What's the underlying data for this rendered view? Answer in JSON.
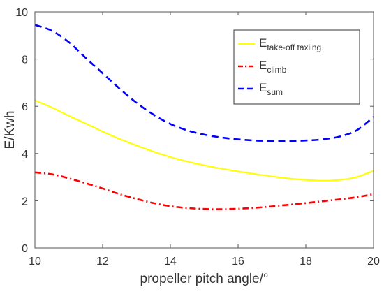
{
  "chart_data": {
    "type": "line",
    "xlabel": "propeller pitch angle/°",
    "ylabel": "E/Kwh",
    "xlim": [
      10,
      20
    ],
    "ylim": [
      0,
      10
    ],
    "xticks": [
      10,
      12,
      14,
      16,
      18,
      20
    ],
    "yticks": [
      0,
      2,
      4,
      6,
      8,
      10
    ],
    "grid": false,
    "legend_position": "top-right",
    "series": [
      {
        "name_main": "E",
        "name_sub": "take-off taxiing",
        "color": "#ffff00",
        "style": "solid",
        "x": [
          10,
          10.5,
          11,
          11.5,
          12,
          12.5,
          13,
          13.5,
          14,
          14.5,
          15,
          15.5,
          16,
          16.5,
          17,
          17.5,
          18,
          18.5,
          19,
          19.5,
          20
        ],
        "y": [
          6.25,
          5.95,
          5.6,
          5.27,
          4.93,
          4.62,
          4.34,
          4.08,
          3.85,
          3.66,
          3.5,
          3.36,
          3.24,
          3.13,
          3.03,
          2.94,
          2.88,
          2.85,
          2.88,
          3.0,
          3.27
        ]
      },
      {
        "name_main": "E",
        "name_sub": "climb",
        "color": "#ff0000",
        "style": "dash-dot",
        "x": [
          10,
          10.5,
          11,
          11.5,
          12,
          12.5,
          13,
          13.5,
          14,
          14.5,
          15,
          15.5,
          16,
          16.5,
          17,
          17.5,
          18,
          18.5,
          19,
          19.5,
          20
        ],
        "y": [
          3.2,
          3.12,
          2.95,
          2.74,
          2.52,
          2.28,
          2.08,
          1.9,
          1.77,
          1.69,
          1.65,
          1.64,
          1.66,
          1.7,
          1.76,
          1.83,
          1.9,
          1.98,
          2.06,
          2.15,
          2.28
        ]
      },
      {
        "name_main": "E",
        "name_sub": "sum",
        "color": "#0000ff",
        "style": "dashed",
        "x": [
          10,
          10.5,
          11,
          11.5,
          12,
          12.5,
          13,
          13.5,
          14,
          14.5,
          15,
          15.5,
          16,
          16.5,
          17,
          17.5,
          18,
          18.5,
          19,
          19.5,
          20
        ],
        "y": [
          9.45,
          9.2,
          8.72,
          8.05,
          7.4,
          6.75,
          6.15,
          5.65,
          5.25,
          4.98,
          4.8,
          4.68,
          4.6,
          4.55,
          4.53,
          4.53,
          4.55,
          4.6,
          4.72,
          4.98,
          5.55
        ]
      }
    ]
  }
}
